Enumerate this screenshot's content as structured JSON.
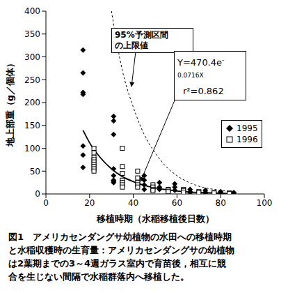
{
  "chart_data": {
    "type": "scatter",
    "x_label": "移植時期（水稲移植後日数）",
    "y_label": "地上部重（g／個体）",
    "xlim": [
      0,
      100
    ],
    "xticks": [
      0,
      20,
      40,
      60,
      80,
      100
    ],
    "ylim": [
      0,
      400
    ],
    "yticks": [
      0,
      50,
      100,
      150,
      200,
      250,
      300,
      350,
      400
    ],
    "series": [
      {
        "name": "1995",
        "type": "scatter",
        "marker": "diamond",
        "color": "#000000",
        "x": [
          17,
          17,
          17,
          17,
          17,
          17,
          17,
          31,
          31,
          31,
          31,
          31,
          31,
          31,
          31,
          45,
          45,
          45,
          45,
          52,
          52,
          52,
          59,
          59,
          59,
          66,
          66,
          66,
          73,
          73,
          73,
          80,
          80,
          86,
          86
        ],
        "values": [
          315,
          265,
          222,
          218,
          105,
          85,
          58,
          170,
          160,
          130,
          55,
          40,
          30,
          25,
          28,
          40,
          30,
          20,
          10,
          25,
          15,
          10,
          22,
          15,
          8,
          10,
          5,
          3,
          8,
          4,
          2,
          5,
          3,
          3,
          2
        ]
      },
      {
        "name": "1996",
        "type": "scatter",
        "marker": "square",
        "color": "#000000",
        "x": [
          22,
          22,
          22,
          22,
          22,
          22,
          22,
          22,
          22,
          35,
          35,
          35,
          35,
          35,
          35,
          35,
          42,
          42,
          42,
          42,
          42,
          49,
          49,
          49,
          49,
          56,
          56,
          56,
          63,
          63,
          63,
          70,
          70,
          77,
          77,
          84,
          84
        ],
        "values": [
          100,
          90,
          80,
          75,
          70,
          65,
          60,
          55,
          50,
          100,
          60,
          45,
          30,
          25,
          20,
          15,
          50,
          35,
          25,
          20,
          15,
          20,
          15,
          10,
          7,
          10,
          8,
          5,
          10,
          7,
          4,
          5,
          3,
          3,
          2,
          2,
          1
        ]
      },
      {
        "type": "line",
        "line_style": "solid",
        "color": "#000000",
        "x": [
          17,
          20,
          25,
          30,
          35,
          40,
          50,
          60,
          70,
          80,
          85
        ],
        "values": [
          139,
          112,
          79,
          55,
          38,
          27,
          13,
          6.4,
          3.1,
          1.5,
          1.1
        ]
      },
      {
        "type": "line",
        "line_style": "dashed",
        "color": "#000000",
        "x": [
          30,
          35,
          40,
          45,
          50,
          55,
          60,
          70,
          80,
          85
        ],
        "values": [
          400,
          270,
          190,
          130,
          90,
          60,
          40,
          17,
          8,
          5
        ]
      }
    ],
    "annotations": [
      {
        "text": [
          "95%予測区間",
          "の上限値"
        ]
      },
      {
        "base": "Y=470.4e",
        "exponent": "-0.0716X",
        "r2": "r²=0.862"
      }
    ],
    "caption": [
      "図1　アメリカセンダングサ幼植物の水田への移植時期",
      "と水稲収穫時の生育量：アメリカセンダングサの幼植物",
      "は2葉期までの3～4週ガラス室内で育苗後，相互に競",
      "合を生じない間隔で水稲群落内へ移植した。"
    ],
    "legend": "right"
  }
}
